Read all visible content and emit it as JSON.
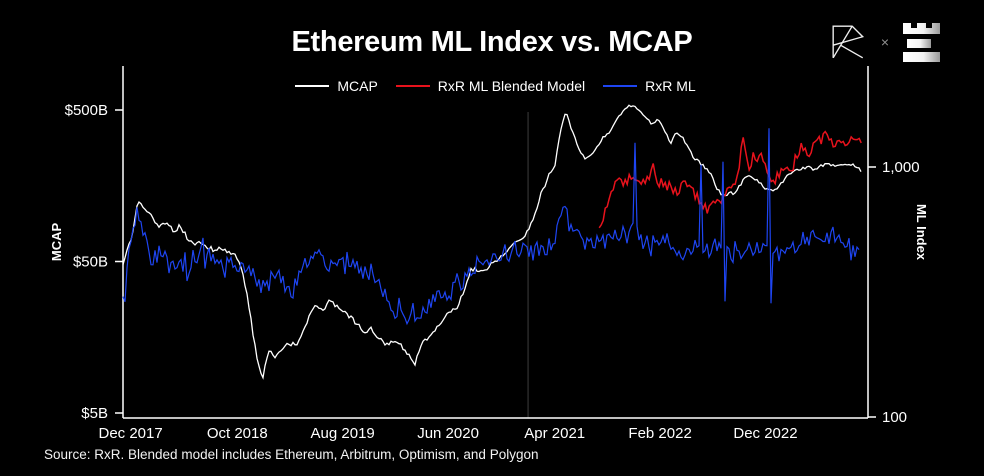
{
  "title": "Ethereum ML Index vs. MCAP",
  "source_note": "Source: RxR. Blended model includes Ethereum, Arbitrum, Optimism, and Polygon",
  "branding": {
    "separator": "×",
    "left_logo": "rxr-monogram",
    "right_logo": "bars-mark"
  },
  "legend": [
    {
      "label": "MCAP",
      "color": "#ffffff"
    },
    {
      "label": "RxR ML Blended Model",
      "color": "#e8121c"
    },
    {
      "label": "RxR ML",
      "color": "#1e45f2"
    }
  ],
  "colors": {
    "background": "#000000",
    "axis": "#ffffff",
    "gridline": "#3d3d3d"
  },
  "chart_data": {
    "type": "line",
    "title": "Ethereum ML Index vs. MCAP",
    "x_axis": {
      "range": [
        2017.89,
        2023.71
      ],
      "ticks": [
        {
          "t": 2017.95,
          "label": "Dec 2017"
        },
        {
          "t": 2018.79,
          "label": "Oct 2018"
        },
        {
          "t": 2019.62,
          "label": "Aug 2019"
        },
        {
          "t": 2020.45,
          "label": "Jun 2020"
        },
        {
          "t": 2021.29,
          "label": "Apr 2021"
        },
        {
          "t": 2022.12,
          "label": "Feb 2022"
        },
        {
          "t": 2022.95,
          "label": "Dec 2022"
        }
      ]
    },
    "y_left": {
      "label": "MCAP",
      "scale": "log",
      "units": "billions USD",
      "range": [
        5,
        600
      ],
      "ticks": [
        {
          "v": 500,
          "label": "$500B"
        },
        {
          "v": 50,
          "label": "$50B"
        },
        {
          "v": 5,
          "label": "$5B"
        }
      ]
    },
    "y_right": {
      "label": "ML Index",
      "scale": "log",
      "range": [
        100,
        2000
      ],
      "ticks": [
        {
          "v": 1000,
          "label": "1,000"
        },
        {
          "v": 100,
          "label": "100"
        }
      ]
    },
    "annotations": [
      {
        "type": "vline",
        "t": 2021.08
      }
    ],
    "series": [
      {
        "name": "MCAP",
        "axis": "left",
        "color": "#ffffff",
        "points": [
          [
            2017.89,
            47
          ],
          [
            2017.96,
            74
          ],
          [
            2018.01,
            126
          ],
          [
            2018.07,
            108
          ],
          [
            2018.12,
            97
          ],
          [
            2018.18,
            84
          ],
          [
            2018.23,
            92
          ],
          [
            2018.29,
            79
          ],
          [
            2018.34,
            86
          ],
          [
            2018.4,
            71
          ],
          [
            2018.45,
            64
          ],
          [
            2018.51,
            67
          ],
          [
            2018.56,
            62
          ],
          [
            2018.62,
            59
          ],
          [
            2018.67,
            62
          ],
          [
            2018.73,
            57
          ],
          [
            2018.78,
            55
          ],
          [
            2018.84,
            40
          ],
          [
            2018.89,
            23
          ],
          [
            2018.94,
            12
          ],
          [
            2018.99,
            8.6
          ],
          [
            2019.04,
            13
          ],
          [
            2019.08,
            11.5
          ],
          [
            2019.14,
            13.5
          ],
          [
            2019.19,
            14.5
          ],
          [
            2019.25,
            14
          ],
          [
            2019.3,
            17
          ],
          [
            2019.36,
            22
          ],
          [
            2019.41,
            26
          ],
          [
            2019.47,
            24
          ],
          [
            2019.52,
            28
          ],
          [
            2019.58,
            25
          ],
          [
            2019.63,
            23
          ],
          [
            2019.69,
            21
          ],
          [
            2019.74,
            19
          ],
          [
            2019.8,
            17
          ],
          [
            2019.85,
            18
          ],
          [
            2019.91,
            15.5
          ],
          [
            2019.96,
            14
          ],
          [
            2020.02,
            15
          ],
          [
            2020.08,
            14
          ],
          [
            2020.13,
            12.5
          ],
          [
            2020.19,
            10.7
          ],
          [
            2020.24,
            14
          ],
          [
            2020.3,
            16
          ],
          [
            2020.35,
            18
          ],
          [
            2020.41,
            21
          ],
          [
            2020.46,
            23
          ],
          [
            2020.52,
            25
          ],
          [
            2020.57,
            31
          ],
          [
            2020.63,
            45
          ],
          [
            2020.68,
            44
          ],
          [
            2020.74,
            44
          ],
          [
            2020.79,
            48
          ],
          [
            2020.85,
            53
          ],
          [
            2020.9,
            58
          ],
          [
            2020.96,
            66
          ],
          [
            2021.03,
            72
          ],
          [
            2021.08,
            79
          ],
          [
            2021.14,
            108
          ],
          [
            2021.19,
            145
          ],
          [
            2021.25,
            190
          ],
          [
            2021.29,
            215
          ],
          [
            2021.34,
            380
          ],
          [
            2021.38,
            485
          ],
          [
            2021.44,
            340
          ],
          [
            2021.49,
            270
          ],
          [
            2021.53,
            235
          ],
          [
            2021.58,
            255
          ],
          [
            2021.63,
            285
          ],
          [
            2021.67,
            330
          ],
          [
            2021.72,
            360
          ],
          [
            2021.77,
            420
          ],
          [
            2021.81,
            465
          ],
          [
            2021.86,
            530
          ],
          [
            2021.91,
            540
          ],
          [
            2021.96,
            490
          ],
          [
            2022.01,
            450
          ],
          [
            2022.05,
            405
          ],
          [
            2022.1,
            430
          ],
          [
            2022.15,
            380
          ],
          [
            2022.2,
            295
          ],
          [
            2022.24,
            360
          ],
          [
            2022.29,
            335
          ],
          [
            2022.34,
            280
          ],
          [
            2022.38,
            245
          ],
          [
            2022.43,
            225
          ],
          [
            2022.48,
            207
          ],
          [
            2022.53,
            184
          ],
          [
            2022.57,
            150
          ],
          [
            2022.62,
            135
          ],
          [
            2022.67,
            143
          ],
          [
            2022.71,
            140
          ],
          [
            2022.76,
            165
          ],
          [
            2022.81,
            184
          ],
          [
            2022.85,
            180
          ],
          [
            2022.9,
            165
          ],
          [
            2022.95,
            152
          ],
          [
            2023.01,
            145
          ],
          [
            2023.06,
            158
          ],
          [
            2023.12,
            184
          ],
          [
            2023.17,
            197
          ],
          [
            2023.22,
            205
          ],
          [
            2023.28,
            210
          ],
          [
            2023.33,
            203
          ],
          [
            2023.39,
            215
          ],
          [
            2023.44,
            222
          ],
          [
            2023.5,
            210
          ],
          [
            2023.55,
            218
          ],
          [
            2023.61,
            222
          ],
          [
            2023.66,
            214
          ],
          [
            2023.71,
            197
          ]
        ]
      },
      {
        "name": "RxR ML Blended Model",
        "axis": "right",
        "color": "#e8121c",
        "points": [
          [
            2021.64,
            560
          ],
          [
            2021.68,
            640
          ],
          [
            2021.73,
            790
          ],
          [
            2021.78,
            880
          ],
          [
            2021.83,
            860
          ],
          [
            2021.87,
            900
          ],
          [
            2021.92,
            880
          ],
          [
            2021.97,
            860
          ],
          [
            2022.01,
            840
          ],
          [
            2022.06,
            1030
          ],
          [
            2022.11,
            860
          ],
          [
            2022.16,
            880
          ],
          [
            2022.2,
            840
          ],
          [
            2022.25,
            800
          ],
          [
            2022.3,
            860
          ],
          [
            2022.35,
            820
          ],
          [
            2022.39,
            780
          ],
          [
            2022.44,
            730
          ],
          [
            2022.49,
            680
          ],
          [
            2022.53,
            700
          ],
          [
            2022.58,
            730
          ],
          [
            2022.63,
            770
          ],
          [
            2022.68,
            810
          ],
          [
            2022.72,
            870
          ],
          [
            2022.77,
            1280
          ],
          [
            2022.82,
            1000
          ],
          [
            2022.86,
            1060
          ],
          [
            2022.91,
            1140
          ],
          [
            2022.96,
            950
          ],
          [
            2023.01,
            870
          ],
          [
            2023.06,
            950
          ],
          [
            2023.11,
            1040
          ],
          [
            2023.16,
            980
          ],
          [
            2023.19,
            1100
          ],
          [
            2023.24,
            1230
          ],
          [
            2023.29,
            1140
          ],
          [
            2023.33,
            1200
          ],
          [
            2023.38,
            1280
          ],
          [
            2023.43,
            1340
          ],
          [
            2023.48,
            1230
          ],
          [
            2023.52,
            1280
          ],
          [
            2023.57,
            1200
          ],
          [
            2023.62,
            1280
          ],
          [
            2023.66,
            1340
          ],
          [
            2023.71,
            1290
          ]
        ]
      },
      {
        "name": "RxR ML",
        "axis": "right",
        "color": "#1e45f2",
        "points": [
          [
            2017.89,
            294
          ],
          [
            2017.96,
            535
          ],
          [
            2018.01,
            672
          ],
          [
            2018.07,
            488
          ],
          [
            2018.12,
            424
          ],
          [
            2018.18,
            457
          ],
          [
            2018.23,
            417
          ],
          [
            2018.29,
            387
          ],
          [
            2018.34,
            417
          ],
          [
            2018.4,
            373
          ],
          [
            2018.45,
            417
          ],
          [
            2018.51,
            465
          ],
          [
            2018.56,
            457
          ],
          [
            2018.62,
            434
          ],
          [
            2018.67,
            417
          ],
          [
            2018.73,
            394
          ],
          [
            2018.78,
            380
          ],
          [
            2018.84,
            417
          ],
          [
            2018.89,
            387
          ],
          [
            2018.95,
            347
          ],
          [
            2019.01,
            322
          ],
          [
            2019.06,
            360
          ],
          [
            2019.12,
            380
          ],
          [
            2019.17,
            338
          ],
          [
            2019.23,
            322
          ],
          [
            2019.28,
            360
          ],
          [
            2019.34,
            417
          ],
          [
            2019.39,
            440
          ],
          [
            2019.45,
            417
          ],
          [
            2019.5,
            394
          ],
          [
            2019.56,
            417
          ],
          [
            2019.61,
            448
          ],
          [
            2019.67,
            417
          ],
          [
            2019.72,
            394
          ],
          [
            2019.78,
            380
          ],
          [
            2019.83,
            360
          ],
          [
            2019.89,
            340
          ],
          [
            2019.94,
            320
          ],
          [
            2020.0,
            276
          ],
          [
            2020.05,
            260
          ],
          [
            2020.11,
            249
          ],
          [
            2020.16,
            255
          ],
          [
            2020.22,
            263
          ],
          [
            2020.27,
            275
          ],
          [
            2020.33,
            294
          ],
          [
            2020.38,
            300
          ],
          [
            2020.44,
            307
          ],
          [
            2020.49,
            322
          ],
          [
            2020.55,
            338
          ],
          [
            2020.6,
            370
          ],
          [
            2020.66,
            405
          ],
          [
            2020.71,
            417
          ],
          [
            2020.77,
            432
          ],
          [
            2020.82,
            440
          ],
          [
            2020.88,
            445
          ],
          [
            2020.93,
            455
          ],
          [
            2020.98,
            465
          ],
          [
            2021.04,
            470
          ],
          [
            2021.1,
            474
          ],
          [
            2021.15,
            465
          ],
          [
            2021.21,
            465
          ],
          [
            2021.26,
            488
          ],
          [
            2021.32,
            570
          ],
          [
            2021.38,
            740
          ],
          [
            2021.43,
            549
          ],
          [
            2021.49,
            510
          ],
          [
            2021.54,
            492
          ],
          [
            2021.6,
            510
          ],
          [
            2021.65,
            492
          ],
          [
            2021.71,
            510
          ],
          [
            2021.76,
            530
          ],
          [
            2021.82,
            510
          ],
          [
            2021.87,
            530
          ],
          [
            2021.92,
            570
          ],
          [
            2021.98,
            510
          ],
          [
            2022.03,
            492
          ],
          [
            2022.09,
            510
          ],
          [
            2022.15,
            530
          ],
          [
            2022.2,
            492
          ],
          [
            2022.26,
            474
          ],
          [
            2022.31,
            457
          ],
          [
            2022.37,
            474
          ],
          [
            2022.42,
            492
          ],
          [
            2022.48,
            457
          ],
          [
            2022.53,
            474
          ],
          [
            2022.59,
            492
          ],
          [
            2022.64,
            457
          ],
          [
            2022.7,
            434
          ],
          [
            2022.75,
            457
          ],
          [
            2022.81,
            474
          ],
          [
            2022.86,
            457
          ],
          [
            2022.92,
            474
          ],
          [
            2022.97,
            492
          ],
          [
            2023.03,
            457
          ],
          [
            2023.08,
            440
          ],
          [
            2023.14,
            457
          ],
          [
            2023.19,
            474
          ],
          [
            2023.25,
            492
          ],
          [
            2023.3,
            510
          ],
          [
            2023.36,
            530
          ],
          [
            2023.41,
            510
          ],
          [
            2023.47,
            530
          ],
          [
            2023.52,
            549
          ],
          [
            2023.58,
            510
          ],
          [
            2023.63,
            474
          ],
          [
            2023.7,
            457
          ]
        ],
        "spikes": [
          [
            2021.92,
            1250
          ],
          [
            2022.44,
            1020
          ],
          [
            2022.61,
            1050
          ],
          [
            2022.63,
            290
          ],
          [
            2022.97,
            1430
          ],
          [
            2022.99,
            285
          ]
        ]
      }
    ]
  }
}
